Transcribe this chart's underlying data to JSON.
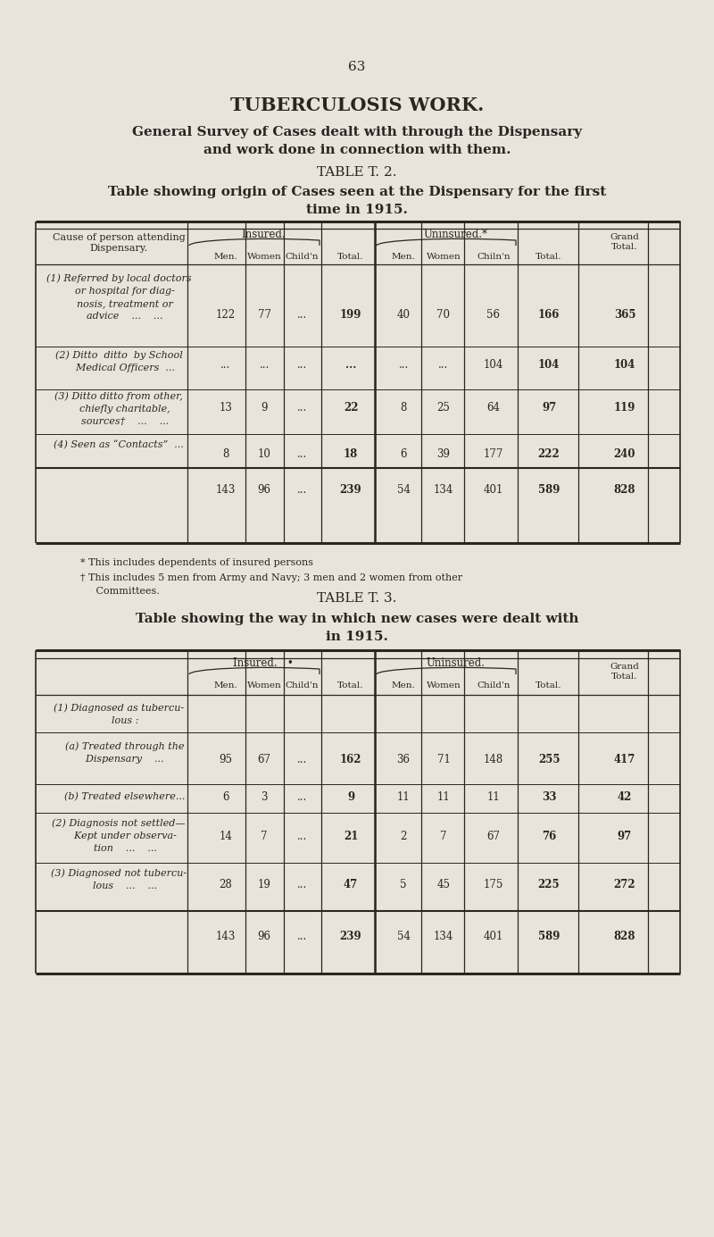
{
  "page_number": "63",
  "title1": "TUBERCULOSIS WORK.",
  "subtitle1": "General Survey of Cases dealt with through the Dispensary",
  "subtitle2": "and work done in connection with them.",
  "table2_title": "TABLE T. 2.",
  "table2_subtitle1": "Table showing origin of Cases seen at the Dispensary for the first",
  "table2_subtitle2": "time in 1915.",
  "table2_insured_label": "Insured.",
  "table2_uninsured_label": "Uninsured.*",
  "table2_grand_total_label": "Grand\nTotal.",
  "table2_sub_headers": [
    "Men.",
    "Women",
    "Child'n",
    "Total.",
    "Men.",
    "Women",
    "Chiln'n",
    "Total."
  ],
  "table2_rows": [
    {
      "label_lines": [
        "(1) Referred by local doctors",
        "    or hospital for diag-",
        "    nosis, treatment or",
        "    advice    ...    ..."
      ],
      "ins_men": "122",
      "ins_women": "77",
      "ins_childn": "...",
      "ins_total": "199",
      "unins_men": "40",
      "unins_women": "70",
      "unins_childn": "56",
      "unins_total": "166",
      "grand": "365"
    },
    {
      "label_lines": [
        "(2) Ditto  ditto  by School",
        "    Medical Officers  ..."
      ],
      "ins_men": "...",
      "ins_women": "...",
      "ins_childn": "...",
      "ins_total": "...",
      "unins_men": "...",
      "unins_women": "...",
      "unins_childn": "104",
      "unins_total": "104",
      "grand": "104"
    },
    {
      "label_lines": [
        "(3) Ditto ditto from other,",
        "    chiefly charitable,",
        "    sources†    ...    ..."
      ],
      "ins_men": "13",
      "ins_women": "9",
      "ins_childn": "...",
      "ins_total": "22",
      "unins_men": "8",
      "unins_women": "25",
      "unins_childn": "64",
      "unins_total": "97",
      "grand": "119"
    },
    {
      "label_lines": [
        "(4) Seen as “Contacts”  ..."
      ],
      "ins_men": "8",
      "ins_women": "10",
      "ins_childn": "...",
      "ins_total": "18",
      "unins_men": "6",
      "unins_women": "39",
      "unins_childn": "177",
      "unins_total": "222",
      "grand": "240"
    }
  ],
  "table2_totals": [
    "143",
    "96",
    "...",
    "239",
    "54",
    "134",
    "401",
    "589",
    "828"
  ],
  "table2_footnote1": "* This includes dependents of insured persons",
  "table2_footnote2": "† This includes 5 men from Army and Navy; 3 men and 2 women from other",
  "table2_footnote3": "     Committees.",
  "table3_title": "TABLE T. 3.",
  "table3_subtitle1": "Table showing the way in which new cases were dealt with",
  "table3_subtitle2": "in 1915.",
  "table3_insured_label": "Insured.",
  "table3_uninsured_label": "Uninsured.",
  "table3_grand_total_label": "Grand\nTotal.",
  "table3_sub_headers": [
    "Men.",
    "Women",
    "Child'n",
    "Total.",
    "Men.",
    "Women",
    "Child'n",
    "Total."
  ],
  "table3_rows": [
    {
      "label_lines": [
        "(1) Diagnosed as tubercu-",
        "    lous :"
      ],
      "ins_men": "",
      "ins_women": "",
      "ins_childn": "",
      "ins_total": "",
      "unins_men": "",
      "unins_women": "",
      "unins_childn": "",
      "unins_total": "",
      "grand": ""
    },
    {
      "label_lines": [
        "    (a) Treated through the",
        "    Dispensary    ..."
      ],
      "ins_men": "95",
      "ins_women": "67",
      "ins_childn": "...",
      "ins_total": "162",
      "unins_men": "36",
      "unins_women": "71",
      "unins_childn": "148",
      "unins_total": "255",
      "grand": "417"
    },
    {
      "label_lines": [
        "    (b) Treated elsewhere..."
      ],
      "ins_men": "6",
      "ins_women": "3",
      "ins_childn": "...",
      "ins_total": "9",
      "unins_men": "11",
      "unins_women": "11",
      "unins_childn": "11",
      "unins_total": "33",
      "grand": "42"
    },
    {
      "label_lines": [
        "(2) Diagnosis not settled—",
        "    Kept under observa-",
        "    tion    ...    ..."
      ],
      "ins_men": "14",
      "ins_women": "7",
      "ins_childn": "...",
      "ins_total": "21",
      "unins_men": "2",
      "unins_women": "7",
      "unins_childn": "67",
      "unins_total": "76",
      "grand": "97"
    },
    {
      "label_lines": [
        "(3) Diagnosed not tubercu-",
        "    lous    ...    ..."
      ],
      "ins_men": "28",
      "ins_women": "19",
      "ins_childn": "...",
      "ins_total": "47",
      "unins_men": "5",
      "unins_women": "45",
      "unins_childn": "175",
      "unins_total": "225",
      "grand": "272"
    }
  ],
  "table3_totals": [
    "143",
    "96",
    "...",
    "239",
    "54",
    "134",
    "401",
    "589",
    "828"
  ],
  "bg_color": "#e8e4dc",
  "text_color": "#2a2520",
  "line_color": "#2a2520"
}
